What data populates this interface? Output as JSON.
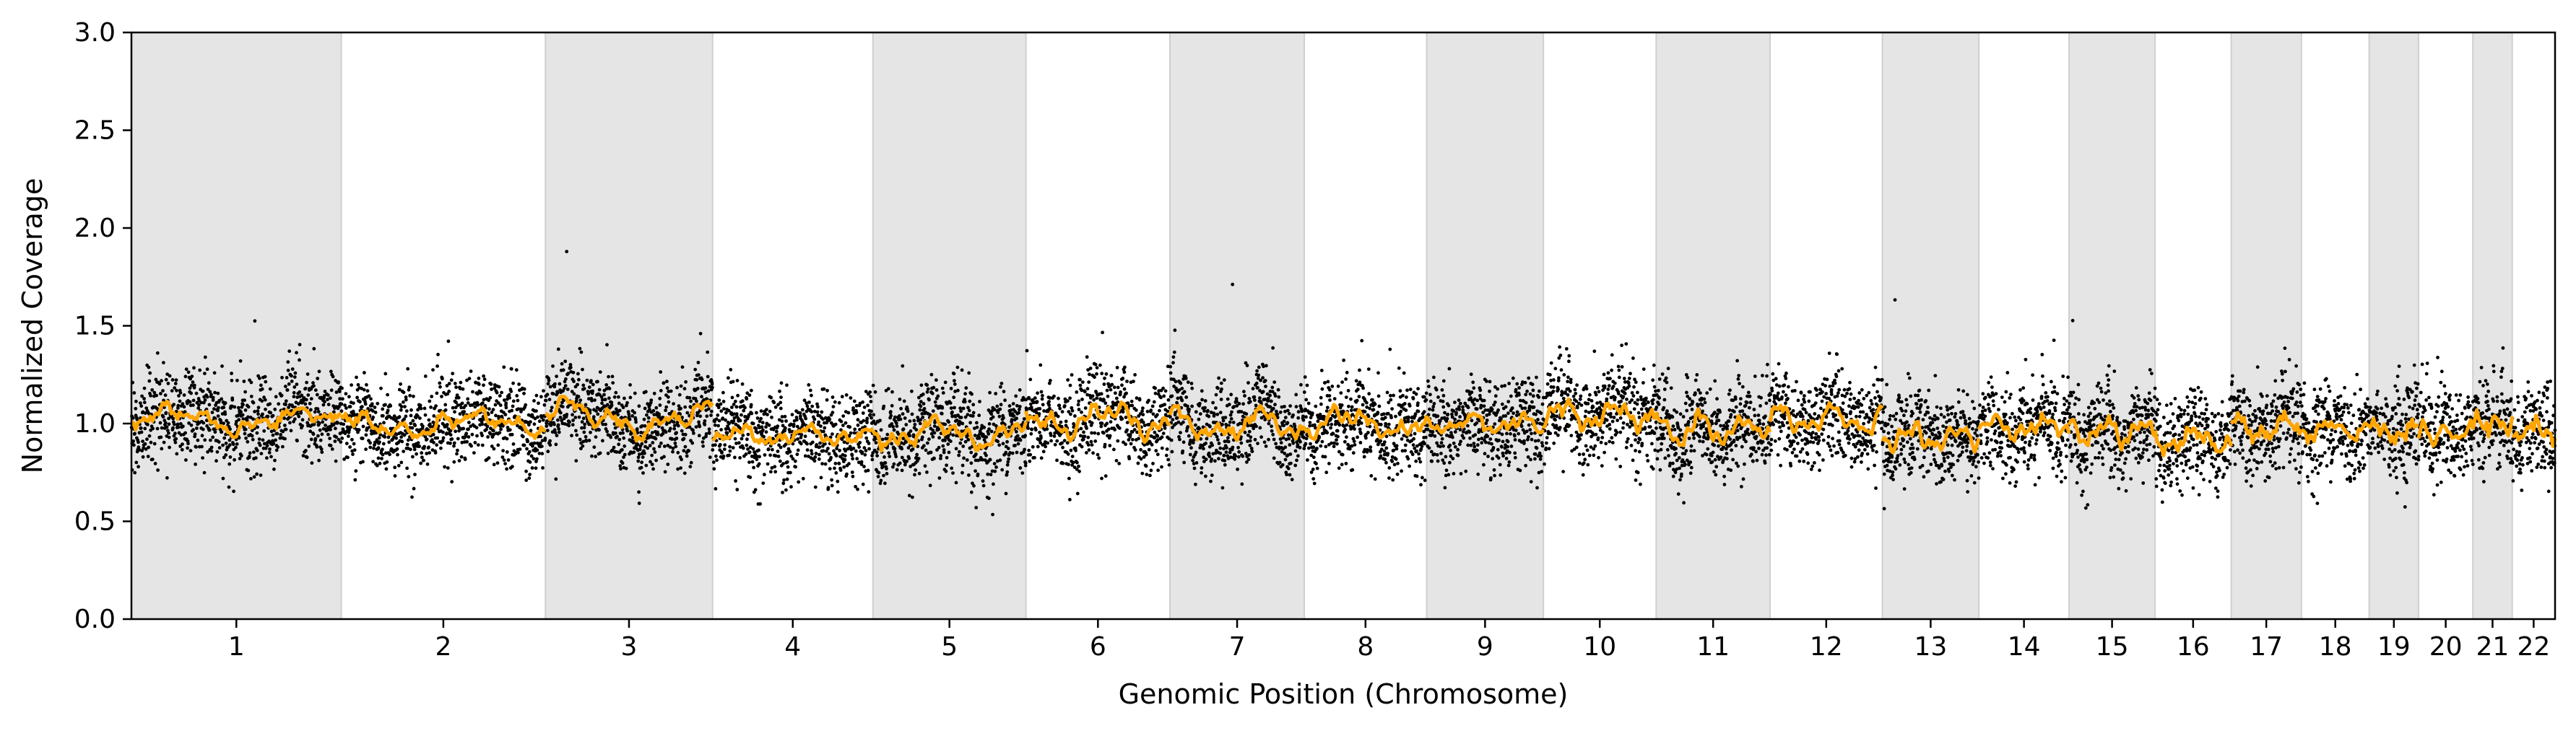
{
  "chart_data": {
    "type": "scatter",
    "title": "",
    "xlabel": "Genomic Position (Chromosome)",
    "ylabel": "Normalized Coverage",
    "ylim": [
      0,
      3.0
    ],
    "yticks": [
      "0.0",
      "0.5",
      "1.0",
      "1.5",
      "2.0",
      "2.5",
      "3.0"
    ],
    "grid": false,
    "legend": "none",
    "colors": {
      "points": "#000000",
      "smoothed_line": "#ffa500",
      "shaded_band": "#e5e5e5",
      "band_border": "#cfcfcf"
    },
    "chromosomes": [
      {
        "name": "1",
        "start": 0.0,
        "end": 248.9,
        "shaded": true,
        "level": 1.02,
        "amp": 0.07
      },
      {
        "name": "2",
        "start": 248.9,
        "end": 491.1,
        "shaded": false,
        "level": 1.0,
        "amp": 0.07
      },
      {
        "name": "3",
        "start": 491.1,
        "end": 689.4,
        "shaded": true,
        "level": 1.03,
        "amp": 0.1
      },
      {
        "name": "4",
        "start": 689.4,
        "end": 879.6,
        "shaded": false,
        "level": 0.94,
        "amp": 0.05
      },
      {
        "name": "5",
        "start": 879.6,
        "end": 1061.1,
        "shaded": true,
        "level": 0.95,
        "amp": 0.08
      },
      {
        "name": "6",
        "start": 1061.1,
        "end": 1231.9,
        "shaded": false,
        "level": 1.02,
        "amp": 0.1
      },
      {
        "name": "7",
        "start": 1231.9,
        "end": 1391.3,
        "shaded": true,
        "level": 0.99,
        "amp": 0.09
      },
      {
        "name": "8",
        "start": 1391.3,
        "end": 1536.5,
        "shaded": false,
        "level": 1.0,
        "amp": 0.08
      },
      {
        "name": "9",
        "start": 1536.5,
        "end": 1674.9,
        "shaded": true,
        "level": 1.0,
        "amp": 0.05
      },
      {
        "name": "10",
        "start": 1674.9,
        "end": 1808.7,
        "shaded": false,
        "level": 1.05,
        "amp": 0.08
      },
      {
        "name": "11",
        "start": 1808.7,
        "end": 1943.8,
        "shaded": true,
        "level": 0.97,
        "amp": 0.08
      },
      {
        "name": "12",
        "start": 1943.8,
        "end": 2077.1,
        "shaded": false,
        "level": 1.02,
        "amp": 0.08
      },
      {
        "name": "13",
        "start": 2077.1,
        "end": 2191.5,
        "shaded": true,
        "level": 0.93,
        "amp": 0.07
      },
      {
        "name": "14",
        "start": 2191.5,
        "end": 2298.5,
        "shaded": false,
        "level": 0.98,
        "amp": 0.06
      },
      {
        "name": "15",
        "start": 2298.5,
        "end": 2400.5,
        "shaded": true,
        "level": 0.96,
        "amp": 0.08
      },
      {
        "name": "16",
        "start": 2400.5,
        "end": 2490.8,
        "shaded": false,
        "level": 0.92,
        "amp": 0.07
      },
      {
        "name": "17",
        "start": 2490.8,
        "end": 2574.1,
        "shaded": true,
        "level": 0.98,
        "amp": 0.07
      },
      {
        "name": "18",
        "start": 2574.1,
        "end": 2654.5,
        "shaded": false,
        "level": 0.97,
        "amp": 0.06
      },
      {
        "name": "19",
        "start": 2654.5,
        "end": 2713.1,
        "shaded": true,
        "level": 0.96,
        "amp": 0.06
      },
      {
        "name": "20",
        "start": 2713.1,
        "end": 2777.5,
        "shaded": false,
        "level": 0.95,
        "amp": 0.06
      },
      {
        "name": "21",
        "start": 2777.5,
        "end": 2824.2,
        "shaded": true,
        "level": 1.0,
        "amp": 0.05
      },
      {
        "name": "22",
        "start": 2824.2,
        "end": 2875.0,
        "shaded": false,
        "level": 0.96,
        "amp": 0.06
      }
    ]
  }
}
